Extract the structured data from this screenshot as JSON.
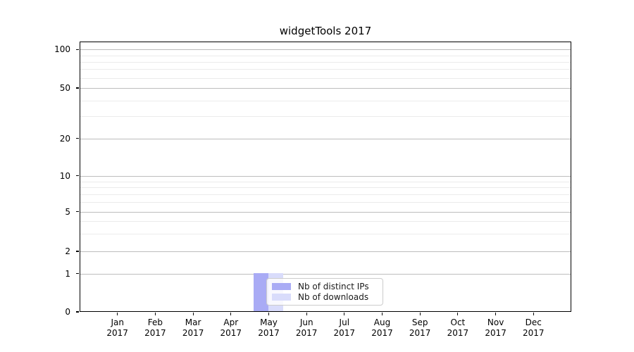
{
  "chart_data": {
    "type": "bar",
    "title": "widgetTools 2017",
    "categories": [
      "Jan 2017",
      "Feb 2017",
      "Mar 2017",
      "Apr 2017",
      "May 2017",
      "Jun 2017",
      "Jul 2017",
      "Aug 2017",
      "Sep 2017",
      "Oct 2017",
      "Nov 2017",
      "Dec 2017"
    ],
    "series": [
      {
        "name": "Nb of distinct IPs",
        "color": "#a9abf5",
        "values": [
          0,
          0,
          0,
          0,
          1,
          0,
          0,
          0,
          0,
          0,
          0,
          0
        ]
      },
      {
        "name": "Nb of downloads",
        "color": "#d9dcfb",
        "values": [
          0,
          0,
          0,
          0,
          1,
          0,
          0,
          0,
          0,
          0,
          0,
          0
        ]
      }
    ],
    "y_axis": {
      "scale": "log-like with 0 baseline",
      "tick_values": [
        0,
        1,
        2,
        5,
        10,
        20,
        50,
        100
      ],
      "minor_grid_values": [
        3,
        4,
        6,
        7,
        8,
        9,
        30,
        40,
        60,
        70,
        80,
        90
      ],
      "ylim_top_approx": 115
    },
    "x_axis": {
      "year_line": "2017"
    },
    "grid": "horizontal",
    "legend": {
      "position": "inside lower center",
      "entries": [
        "Nb of distinct IPs",
        "Nb of downloads"
      ]
    }
  },
  "colors": {
    "distinct_ips": "#a9abf5",
    "downloads": "#d9dcfb",
    "major_grid": "#bdbdbd",
    "minor_grid": "#ebebeb",
    "axis": "#000000",
    "legend_border": "#cccccc"
  }
}
